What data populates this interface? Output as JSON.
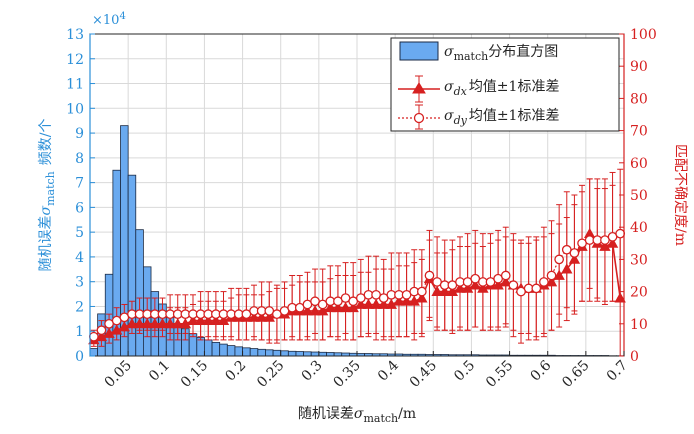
{
  "chart_data": {
    "type": "bar",
    "title": "",
    "xlabel": {
      "prefix": "随机误差",
      "sigma": "σ",
      "sub": "match",
      "suffix": "/m"
    },
    "ylabel_left": {
      "prefix": "随机误差",
      "sigma": "σ",
      "sub": "match",
      "suffix": "频数/个"
    },
    "ylabel_right": "匹配不确定度/m",
    "left_exponent": "×10",
    "left_exponent_power": "4",
    "xlim": [
      0,
      0.7
    ],
    "ylim_left": [
      0,
      13
    ],
    "ylim_right": [
      0,
      100
    ],
    "x_ticks": [
      "0.05",
      "0.1",
      "0.15",
      "0.2",
      "0.25",
      "0.3",
      "0.35",
      "0.4",
      "0.45",
      "0.5",
      "0.55",
      "0.6",
      "0.65",
      "0.7"
    ],
    "left_ticks": [
      "0",
      "1",
      "2",
      "3",
      "4",
      "5",
      "6",
      "7",
      "8",
      "9",
      "10",
      "11",
      "12",
      "13"
    ],
    "right_ticks": [
      "0",
      "10",
      "20",
      "30",
      "40",
      "50",
      "60",
      "70",
      "80",
      "90",
      "100"
    ],
    "colors": {
      "bar_fill": "#6aaaf0",
      "bar_edge": "#1a2a44",
      "left_axis": "#2b8fd8",
      "right_axis": "#d62020",
      "grid": "#d9d9d9"
    },
    "legend": {
      "position": "top-right",
      "entries": [
        {
          "sigma": "σ",
          "sub": "match",
          "label": "分布直方图",
          "kind": "bar"
        },
        {
          "sigma": "σ",
          "sub": "dx",
          "label": "均值±1标准差",
          "kind": "triangle"
        },
        {
          "sigma": "σ",
          "sub": "dy",
          "label": "均值±1标准差",
          "kind": "circle"
        }
      ]
    },
    "histogram": {
      "bin_width": 0.01,
      "bin_starts": [
        0.0,
        0.01,
        0.02,
        0.03,
        0.04,
        0.05,
        0.06,
        0.07,
        0.08,
        0.09,
        0.1,
        0.11,
        0.12,
        0.13,
        0.14,
        0.15,
        0.16,
        0.17,
        0.18,
        0.19,
        0.2,
        0.21,
        0.22,
        0.23,
        0.24,
        0.25,
        0.26,
        0.27,
        0.28,
        0.29,
        0.3,
        0.31,
        0.32,
        0.33,
        0.34,
        0.35,
        0.36,
        0.37,
        0.38,
        0.39,
        0.4,
        0.41,
        0.42,
        0.43,
        0.44,
        0.45,
        0.46,
        0.47,
        0.48,
        0.49,
        0.5,
        0.51,
        0.52,
        0.53,
        0.54,
        0.55,
        0.56,
        0.57,
        0.58,
        0.59,
        0.6,
        0.61,
        0.62,
        0.63,
        0.64,
        0.65,
        0.66,
        0.67,
        0.68,
        0.69
      ],
      "values_e4": [
        0.3,
        1.7,
        3.3,
        7.5,
        9.3,
        7.3,
        5.1,
        3.6,
        2.6,
        2.1,
        1.6,
        1.3,
        1.1,
        0.9,
        0.75,
        0.65,
        0.55,
        0.48,
        0.42,
        0.37,
        0.33,
        0.3,
        0.27,
        0.25,
        0.23,
        0.21,
        0.19,
        0.18,
        0.17,
        0.16,
        0.15,
        0.14,
        0.13,
        0.12,
        0.11,
        0.1,
        0.1,
        0.09,
        0.09,
        0.08,
        0.08,
        0.07,
        0.07,
        0.07,
        0.06,
        0.06,
        0.06,
        0.05,
        0.05,
        0.05,
        0.05,
        0.04,
        0.04,
        0.04,
        0.04,
        0.03,
        0.03,
        0.03,
        0.03,
        0.03,
        0.03,
        0.02,
        0.02,
        0.02,
        0.02,
        0.02,
        0.02,
        0.02,
        0.01,
        0.01
      ]
    },
    "dx_series": {
      "name": "σdx 均值±1标准差",
      "x": [
        0.005,
        0.015,
        0.025,
        0.035,
        0.045,
        0.055,
        0.065,
        0.075,
        0.085,
        0.095,
        0.105,
        0.115,
        0.125,
        0.135,
        0.145,
        0.155,
        0.165,
        0.175,
        0.185,
        0.195,
        0.205,
        0.215,
        0.225,
        0.235,
        0.245,
        0.255,
        0.265,
        0.275,
        0.285,
        0.295,
        0.305,
        0.315,
        0.325,
        0.335,
        0.345,
        0.355,
        0.365,
        0.375,
        0.385,
        0.395,
        0.405,
        0.415,
        0.425,
        0.435,
        0.445,
        0.455,
        0.465,
        0.475,
        0.485,
        0.495,
        0.505,
        0.515,
        0.525,
        0.535,
        0.545,
        0.555,
        0.565,
        0.575,
        0.585,
        0.595,
        0.605,
        0.615,
        0.625,
        0.635,
        0.645,
        0.655,
        0.665,
        0.675,
        0.685,
        0.695
      ],
      "mean": [
        5,
        6,
        7,
        8,
        9,
        10,
        10,
        10,
        10,
        10,
        10,
        10,
        10,
        11,
        11,
        11,
        11,
        11,
        12,
        12,
        12,
        12,
        12,
        12,
        13,
        13,
        14,
        14,
        14,
        14,
        14,
        15,
        15,
        15,
        15,
        16,
        16,
        16,
        16,
        16,
        17,
        17,
        17,
        18,
        24,
        20,
        20,
        20,
        21,
        21,
        22,
        21,
        22,
        22,
        23,
        22,
        21,
        21,
        21,
        22,
        23,
        25,
        27,
        30,
        34,
        38,
        35,
        34,
        35,
        18
      ],
      "std": [
        2,
        3,
        3,
        3,
        3,
        3,
        3,
        4,
        4,
        4,
        5,
        5,
        5,
        5,
        6,
        6,
        6,
        6,
        6,
        7,
        7,
        7,
        7,
        8,
        8,
        8,
        8,
        9,
        9,
        9,
        9,
        9,
        10,
        10,
        10,
        10,
        10,
        11,
        11,
        11,
        11,
        11,
        12,
        12,
        12,
        12,
        12,
        13,
        13,
        13,
        13,
        13,
        13,
        14,
        14,
        14,
        14,
        14,
        15,
        15,
        15,
        16,
        16,
        17,
        17,
        17,
        17,
        18,
        18,
        20
      ]
    },
    "dy_series": {
      "name": "σdy 均值±1标准差",
      "x": [
        0.005,
        0.015,
        0.025,
        0.035,
        0.045,
        0.055,
        0.065,
        0.075,
        0.085,
        0.095,
        0.105,
        0.115,
        0.125,
        0.135,
        0.145,
        0.155,
        0.165,
        0.175,
        0.185,
        0.195,
        0.205,
        0.215,
        0.225,
        0.235,
        0.245,
        0.255,
        0.265,
        0.275,
        0.285,
        0.295,
        0.305,
        0.315,
        0.325,
        0.335,
        0.345,
        0.355,
        0.365,
        0.375,
        0.385,
        0.395,
        0.405,
        0.415,
        0.425,
        0.435,
        0.445,
        0.455,
        0.465,
        0.475,
        0.485,
        0.495,
        0.505,
        0.515,
        0.525,
        0.535,
        0.545,
        0.555,
        0.565,
        0.575,
        0.585,
        0.595,
        0.605,
        0.615,
        0.625,
        0.635,
        0.645,
        0.655,
        0.665,
        0.675,
        0.685,
        0.695
      ],
      "mean": [
        6,
        8,
        10,
        11,
        12,
        13,
        13,
        13,
        13,
        13,
        13,
        13,
        13,
        13,
        13,
        13,
        13,
        13,
        13,
        13,
        13,
        14,
        14,
        14,
        13,
        14,
        15,
        15,
        16,
        17,
        16,
        17,
        17,
        18,
        17,
        18,
        19,
        19,
        18,
        19,
        19,
        19,
        20,
        20,
        25,
        23,
        22,
        22,
        23,
        23,
        24,
        23,
        23,
        24,
        25,
        22,
        20,
        21,
        21,
        23,
        25,
        30,
        33,
        32,
        35,
        36,
        36,
        36,
        37,
        38
      ],
      "std": [
        2,
        3,
        3,
        4,
        4,
        4,
        5,
        5,
        5,
        5,
        6,
        6,
        6,
        6,
        7,
        7,
        7,
        7,
        8,
        8,
        8,
        8,
        9,
        9,
        9,
        9,
        10,
        10,
        10,
        10,
        11,
        11,
        11,
        11,
        12,
        12,
        12,
        12,
        12,
        13,
        13,
        13,
        13,
        13,
        14,
        14,
        14,
        14,
        14,
        15,
        15,
        15,
        15,
        15,
        15,
        16,
        16,
        16,
        16,
        17,
        17,
        17,
        18,
        18,
        18,
        19,
        19,
        19,
        20,
        20
      ]
    }
  }
}
